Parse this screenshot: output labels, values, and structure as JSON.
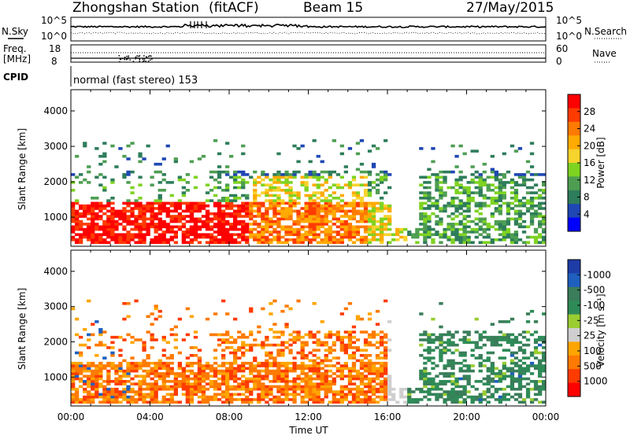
{
  "header": {
    "station": "Zhongshan Station",
    "mode": "(fitACF)",
    "beam": "Beam 15",
    "date": "27/May/2015"
  },
  "top_panels": {
    "nsky_label": "N.Sky",
    "nsearch_label": "N.Search",
    "noise_ticks": [
      "10^5",
      "10^0"
    ],
    "freq_label_line1": "Freq.",
    "freq_label_line2": "[MHz]",
    "freq_ticks": [
      "18",
      "8"
    ],
    "nave_label": "Nave",
    "nave_ticks": [
      "60",
      "0"
    ],
    "cpid_label": "CPID",
    "cpid_text": "normal (fast stereo) 153"
  },
  "colors": {
    "power_scale": [
      "#0000ff",
      "#1f47b4",
      "#2e7d5b",
      "#4e9e52",
      "#7ed321",
      "#f6d32d",
      "#ffaa00",
      "#ff7a00",
      "#ff3b00",
      "#ff0000"
    ],
    "velocity_scale": [
      "#ff0000",
      "#ff3b00",
      "#ff7a00",
      "#ffa500",
      "#cfcfcf",
      "#9acd32",
      "#2e8b57",
      "#3a7d5a",
      "#1f5fbf",
      "#1e3ca8"
    ]
  },
  "chart_data": [
    {
      "type": "heatmap",
      "name": "power",
      "ylabel": "Slant Range [km]",
      "xlabel": "Time UT",
      "x_ticks": [
        "00:00",
        "04:00",
        "08:00",
        "12:00",
        "16:00",
        "20:00",
        "00:00"
      ],
      "y_ticks": [
        1000,
        2000,
        3000,
        4000
      ],
      "ylim": [
        180,
        4600
      ],
      "colorbar_label": "Power [dB]",
      "colorbar_ticks": [
        4,
        8,
        12,
        16,
        20,
        24,
        28
      ],
      "colorbar_range": [
        0,
        30
      ]
    },
    {
      "type": "heatmap",
      "name": "velocity",
      "ylabel": "Slant Range [km]",
      "xlabel": "Time UT",
      "x_ticks": [
        "00:00",
        "04:00",
        "08:00",
        "12:00",
        "16:00",
        "20:00",
        "00:00"
      ],
      "y_ticks": [
        1000,
        2000,
        3000,
        4000
      ],
      "ylim": [
        180,
        4600
      ],
      "colorbar_label": "Velocity [m s⁻¹]",
      "colorbar_ticks": [
        "1000",
        "500",
        "100",
        "25",
        "-25",
        "-100",
        "-500",
        "-1000"
      ]
    }
  ]
}
